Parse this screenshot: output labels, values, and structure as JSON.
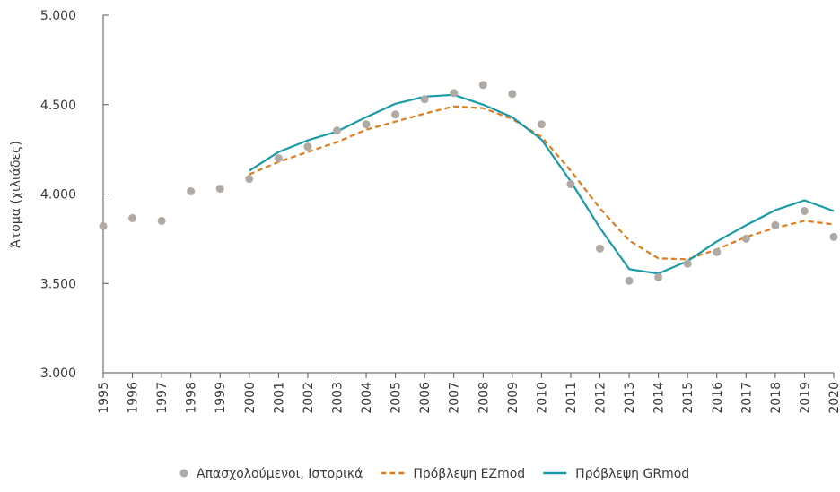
{
  "chart_data": {
    "type": "line",
    "ylabel": "Άτομα (χιλιάδες)",
    "xlabel": "",
    "ylim": [
      3000,
      5000
    ],
    "y_ticks": [
      "3.000",
      "3.500",
      "4.000",
      "4.500",
      "5.000"
    ],
    "y_tick_values": [
      3000,
      3500,
      4000,
      4500,
      5000
    ],
    "categories": [
      "1995",
      "1996",
      "1997",
      "1998",
      "1999",
      "2000",
      "2001",
      "2002",
      "2003",
      "2004",
      "2005",
      "2006",
      "2007",
      "2008",
      "2009",
      "2010",
      "2011",
      "2012",
      "2013",
      "2014",
      "2015",
      "2016",
      "2017",
      "2018",
      "2019",
      "2020"
    ],
    "grid": false,
    "legend_position": "bottom",
    "series": [
      {
        "name": "Απασχολούμενοι, Ιστορικά",
        "kind": "scatter",
        "color": "#b0aaa5",
        "values": [
          3820,
          3865,
          3850,
          4015,
          4030,
          4085,
          4200,
          4265,
          4355,
          4390,
          4445,
          4530,
          4565,
          4610,
          4560,
          4390,
          4055,
          3695,
          3515,
          3535,
          3610,
          3675,
          3750,
          3825,
          3905,
          3760
        ]
      },
      {
        "name": "Πρόβλεψη EZmod",
        "kind": "dashed-line",
        "color": "#e07b1a",
        "values": [
          null,
          null,
          null,
          null,
          null,
          4110,
          4180,
          4235,
          4290,
          4360,
          4405,
          4450,
          4490,
          4480,
          4420,
          4320,
          4130,
          3920,
          3740,
          3640,
          3635,
          3690,
          3760,
          3810,
          3850,
          3830
        ]
      },
      {
        "name": "Πρόβλεψη GRmod",
        "kind": "line",
        "color": "#1a9aa6",
        "values": [
          null,
          null,
          null,
          null,
          null,
          4130,
          4235,
          4300,
          4350,
          4430,
          4505,
          4545,
          4555,
          4500,
          4430,
          4305,
          4070,
          3810,
          3580,
          3555,
          3625,
          3735,
          3825,
          3910,
          3965,
          3905
        ]
      }
    ]
  }
}
